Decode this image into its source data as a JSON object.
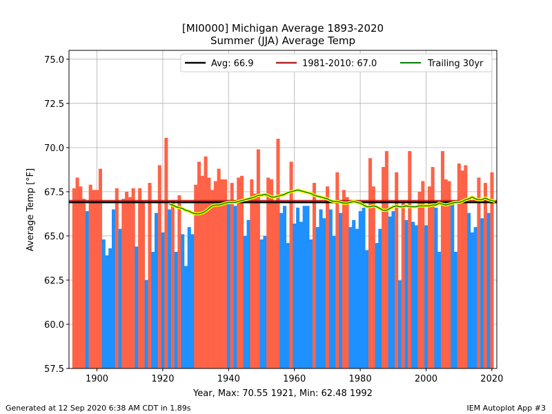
{
  "chart_data": {
    "type": "bar",
    "title": "[MI0000] Michigan Average 1893-2020",
    "subtitle": "Summer (JJA) Average Temp",
    "xlabel": "Year, Max: 70.55 1921, Min: 62.48 1992",
    "ylabel": "Average Temp [°F]",
    "xlim": [
      1891.5,
      2021.5
    ],
    "ylim": [
      57.5,
      75.5
    ],
    "xticks": [
      1900,
      1920,
      1940,
      1960,
      1980,
      2000,
      2020
    ],
    "yticks": [
      57.5,
      60.0,
      62.5,
      65.0,
      67.5,
      70.0,
      72.5,
      75.0
    ],
    "grid": true,
    "legend_position": "top-right",
    "bar_colors": {
      "above": "#ff6347",
      "below": "#1e90ff"
    },
    "average": {
      "label": "Avg: 66.9",
      "value": 66.9,
      "color": "#000000"
    },
    "climatology": {
      "label": "1981-2010: 67.0",
      "value": 67.0,
      "color": "#b22222"
    },
    "trailing_label": "Trailing 30yr",
    "trailing_color": "#008000",
    "trailing_highlight": "#ffff00",
    "x": [
      1893,
      1894,
      1895,
      1896,
      1897,
      1898,
      1899,
      1900,
      1901,
      1902,
      1903,
      1904,
      1905,
      1906,
      1907,
      1908,
      1909,
      1910,
      1911,
      1912,
      1913,
      1914,
      1915,
      1916,
      1917,
      1918,
      1919,
      1920,
      1921,
      1922,
      1923,
      1924,
      1925,
      1926,
      1927,
      1928,
      1929,
      1930,
      1931,
      1932,
      1933,
      1934,
      1935,
      1936,
      1937,
      1938,
      1939,
      1940,
      1941,
      1942,
      1943,
      1944,
      1945,
      1946,
      1947,
      1948,
      1949,
      1950,
      1951,
      1952,
      1953,
      1954,
      1955,
      1956,
      1957,
      1958,
      1959,
      1960,
      1961,
      1962,
      1963,
      1964,
      1965,
      1966,
      1967,
      1968,
      1969,
      1970,
      1971,
      1972,
      1973,
      1974,
      1975,
      1976,
      1977,
      1978,
      1979,
      1980,
      1981,
      1982,
      1983,
      1984,
      1985,
      1986,
      1987,
      1988,
      1989,
      1990,
      1991,
      1992,
      1993,
      1994,
      1995,
      1996,
      1997,
      1998,
      1999,
      2000,
      2001,
      2002,
      2003,
      2004,
      2005,
      2006,
      2007,
      2008,
      2009,
      2010,
      2011,
      2012,
      2013,
      2014,
      2015,
      2016,
      2017,
      2018,
      2019,
      2020
    ],
    "values": [
      67.7,
      68.3,
      67.8,
      67.1,
      66.4,
      67.9,
      67.6,
      67.6,
      68.8,
      64.8,
      63.9,
      64.3,
      66.5,
      67.7,
      65.4,
      67.1,
      67.5,
      67.2,
      67.7,
      64.4,
      67.7,
      66.9,
      62.5,
      68.0,
      64.1,
      66.3,
      69.0,
      65.2,
      70.55,
      66.5,
      67.0,
      64.1,
      67.3,
      65.1,
      63.3,
      65.5,
      65.1,
      67.9,
      69.2,
      68.4,
      69.5,
      68.3,
      67.6,
      68.1,
      68.8,
      68.2,
      68.2,
      66.8,
      68.0,
      66.7,
      68.3,
      68.4,
      65.0,
      65.9,
      68.2,
      67.4,
      69.9,
      64.8,
      65.0,
      68.3,
      68.2,
      66.9,
      70.5,
      66.3,
      66.7,
      64.6,
      69.2,
      65.7,
      66.6,
      65.8,
      66.7,
      66.7,
      64.8,
      68.0,
      65.5,
      66.5,
      66.0,
      67.8,
      66.5,
      65.0,
      68.6,
      66.3,
      67.6,
      67.2,
      65.5,
      65.9,
      65.4,
      66.4,
      66.6,
      64.2,
      69.4,
      67.8,
      64.6,
      65.4,
      68.9,
      69.8,
      66.1,
      66.4,
      68.6,
      62.48,
      66.9,
      65.9,
      69.8,
      65.8,
      65.6,
      67.5,
      68.1,
      65.6,
      67.8,
      68.9,
      66.6,
      64.1,
      69.8,
      68.2,
      68.1,
      66.8,
      64.1,
      69.1,
      68.7,
      69.0,
      66.3,
      65.2,
      65.5,
      68.3,
      66.0,
      68.0,
      66.3,
      68.6
    ],
    "trailing_x": [
      1922,
      1923,
      1924,
      1925,
      1926,
      1927,
      1928,
      1929,
      1930,
      1931,
      1932,
      1933,
      1934,
      1935,
      1936,
      1937,
      1938,
      1939,
      1940,
      1941,
      1942,
      1943,
      1944,
      1945,
      1946,
      1947,
      1948,
      1949,
      1950,
      1951,
      1952,
      1953,
      1954,
      1955,
      1956,
      1957,
      1958,
      1959,
      1960,
      1961,
      1962,
      1963,
      1964,
      1965,
      1966,
      1967,
      1968,
      1969,
      1970,
      1971,
      1972,
      1973,
      1974,
      1975,
      1976,
      1977,
      1978,
      1979,
      1980,
      1981,
      1982,
      1983,
      1984,
      1985,
      1986,
      1987,
      1988,
      1989,
      1990,
      1991,
      1992,
      1993,
      1994,
      1995,
      1996,
      1997,
      1998,
      1999,
      2000,
      2001,
      2002,
      2003,
      2004,
      2005,
      2006,
      2007,
      2008,
      2009,
      2010,
      2011,
      2012,
      2013,
      2014,
      2015,
      2016,
      2017,
      2018,
      2019,
      2020,
      2021
    ],
    "trailing_values": [
      66.8,
      66.75,
      66.65,
      66.6,
      66.55,
      66.45,
      66.4,
      66.3,
      66.25,
      66.25,
      66.3,
      66.4,
      66.55,
      66.7,
      66.75,
      66.75,
      66.8,
      66.85,
      66.9,
      66.9,
      66.9,
      66.95,
      67.0,
      67.05,
      67.1,
      67.15,
      67.2,
      67.3,
      67.3,
      67.35,
      67.3,
      67.2,
      67.2,
      67.25,
      67.3,
      67.35,
      67.45,
      67.5,
      67.55,
      67.6,
      67.55,
      67.5,
      67.45,
      67.4,
      67.3,
      67.25,
      67.2,
      67.15,
      67.1,
      67.0,
      66.95,
      66.95,
      66.9,
      66.85,
      66.85,
      66.9,
      66.95,
      66.9,
      66.85,
      66.75,
      66.65,
      66.65,
      66.7,
      66.65,
      66.55,
      66.45,
      66.45,
      66.55,
      66.65,
      66.7,
      66.65,
      66.65,
      66.7,
      66.65,
      66.65,
      66.65,
      66.7,
      66.7,
      66.7,
      66.7,
      66.75,
      66.75,
      66.85,
      66.8,
      66.75,
      66.8,
      66.85,
      66.9,
      66.9,
      66.95,
      67.05,
      67.1,
      67.2,
      67.1,
      67.05,
      67.05,
      67.15,
      67.05,
      67.0,
      66.95
    ]
  },
  "footer": {
    "left": "Generated at 12 Sep 2020 6:38 AM CDT in 1.89s",
    "right": "IEM Autoplot App #3"
  }
}
